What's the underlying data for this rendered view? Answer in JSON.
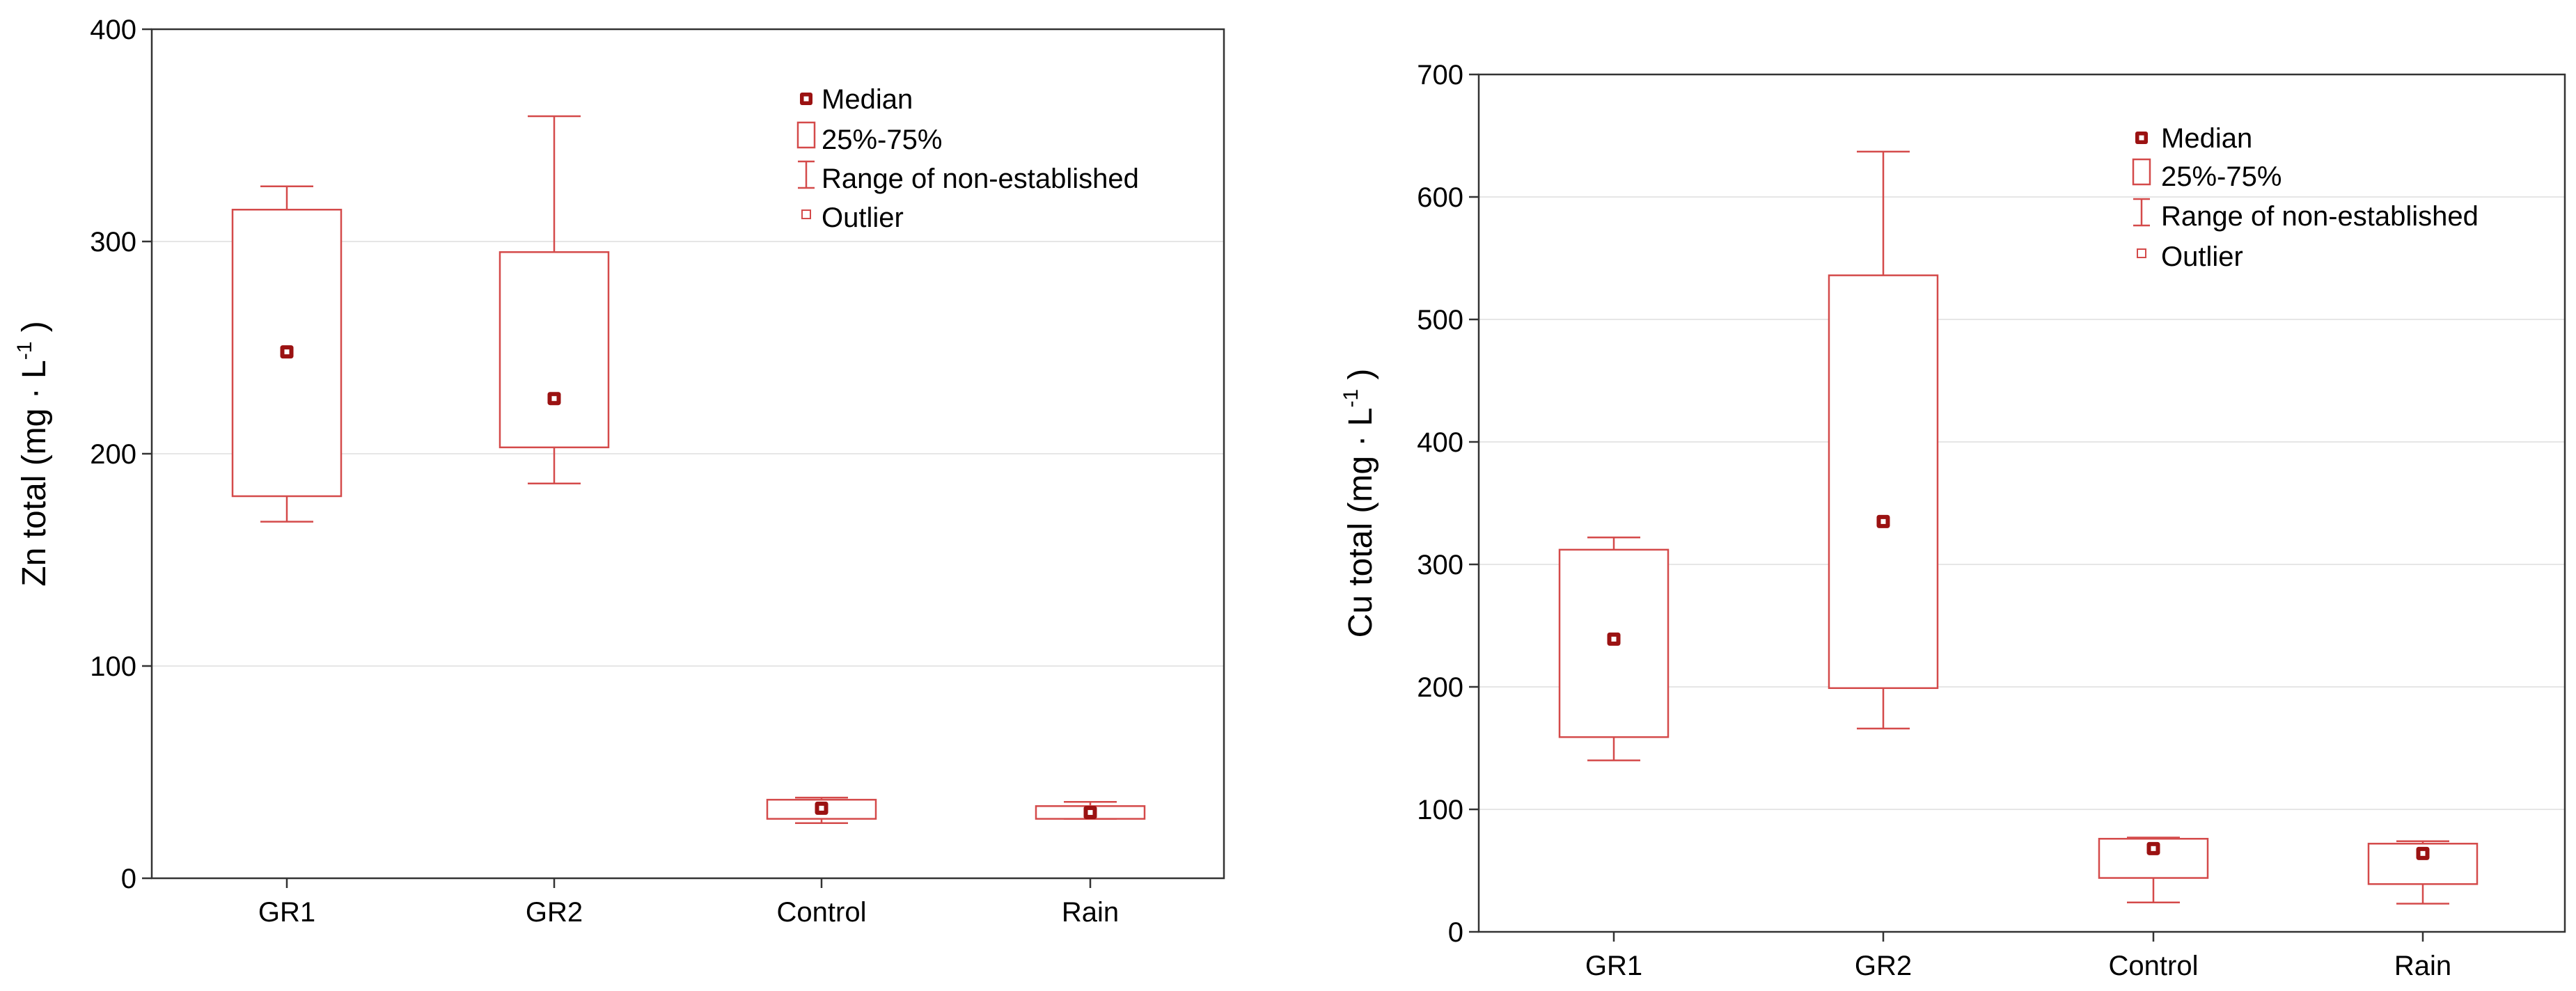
{
  "chart_data": [
    {
      "type": "box",
      "categories": [
        "GR1",
        "GR2",
        "Control",
        "Rain"
      ],
      "ylabel": {
        "prefix": "Zn total (mg · L",
        "sup": "-1",
        "suffix": " )"
      },
      "ylim": [
        0,
        400
      ],
      "yticks": [
        0,
        100,
        200,
        300,
        400
      ],
      "grid": true,
      "legend_position": "top-right",
      "legend": [
        "Median",
        "25%-75%",
        "Range of non-established",
        "Outlier"
      ],
      "boxes": [
        {
          "category": "GR1",
          "median": 248,
          "q1": 180,
          "q3": 315,
          "whisker_low": 168,
          "whisker_high": 326
        },
        {
          "category": "GR2",
          "median": 226,
          "q1": 203,
          "q3": 295,
          "whisker_low": 186,
          "whisker_high": 359
        },
        {
          "category": "Control",
          "median": 33,
          "q1": 28,
          "q3": 37,
          "whisker_low": 26,
          "whisker_high": 38
        },
        {
          "category": "Rain",
          "median": 31,
          "q1": 28,
          "q3": 34,
          "whisker_low": 28,
          "whisker_high": 36
        }
      ]
    },
    {
      "type": "box",
      "categories": [
        "GR1",
        "GR2",
        "Control",
        "Rain"
      ],
      "ylabel": {
        "prefix": "Cu total (mg · L",
        "sup": "-1",
        "suffix": " )"
      },
      "ylim": [
        0,
        700
      ],
      "yticks": [
        0,
        100,
        200,
        300,
        400,
        500,
        600,
        700
      ],
      "grid": true,
      "legend_position": "top-right",
      "legend": [
        "Median",
        "25%-75%",
        "Range of non-established",
        "Outlier"
      ],
      "boxes": [
        {
          "category": "GR1",
          "median": 239,
          "q1": 159,
          "q3": 312,
          "whisker_low": 140,
          "whisker_high": 322
        },
        {
          "category": "GR2",
          "median": 335,
          "q1": 199,
          "q3": 536,
          "whisker_low": 166,
          "whisker_high": 637
        },
        {
          "category": "Control",
          "median": 68,
          "q1": 44,
          "q3": 76,
          "whisker_low": 24,
          "whisker_high": 77
        },
        {
          "category": "Rain",
          "median": 64,
          "q1": 39,
          "q3": 72,
          "whisker_low": 23,
          "whisker_high": 74
        }
      ]
    }
  ],
  "colors": {
    "box": "#d44a4a",
    "median_fill": "#9b1212",
    "grid": "#e6e6e6",
    "axis": "#333333"
  }
}
